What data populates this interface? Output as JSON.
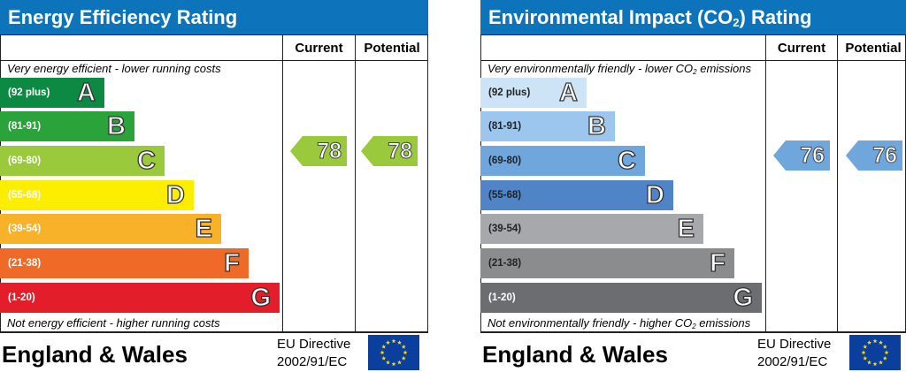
{
  "energy": {
    "title": "Energy Efficiency Rating",
    "col_current": "Current",
    "col_potential": "Potential",
    "top_note": "Very energy efficient - lower running costs",
    "bottom_note": "Not energy efficient - higher running costs",
    "bands": [
      {
        "range": "(92 plus)",
        "letter": "A",
        "color": "#0c8a44"
      },
      {
        "range": "(81-91)",
        "letter": "B",
        "color": "#2aa33b"
      },
      {
        "range": "(69-80)",
        "letter": "C",
        "color": "#9bc93c"
      },
      {
        "range": "(55-68)",
        "letter": "D",
        "color": "#fdee00"
      },
      {
        "range": "(39-54)",
        "letter": "E",
        "color": "#f8b22a"
      },
      {
        "range": "(21-38)",
        "letter": "F",
        "color": "#ef6a26"
      },
      {
        "range": "(1-20)",
        "letter": "G",
        "color": "#e31d2a"
      }
    ],
    "current": "78",
    "potential": "78",
    "current_color": "#9bc93c",
    "potential_color": "#9bc93c",
    "footer_region": "England & Wales",
    "directive_line1": "EU Directive",
    "directive_line2": "2002/91/EC"
  },
  "environment": {
    "title_pre": "Environmental Impact (CO",
    "title_sub": "2",
    "title_post": ") Rating",
    "col_current": "Current",
    "col_potential": "Potential",
    "top_note_pre": "Very environmentally friendly - lower CO",
    "top_note_sub": "2",
    "top_note_post": " emissions",
    "bottom_note_pre": "Not environmentally friendly - higher CO",
    "bottom_note_sub": "2",
    "bottom_note_post": " emissions",
    "bands": [
      {
        "range": "(92 plus)",
        "letter": "A",
        "color": "#cde3f6"
      },
      {
        "range": "(81-91)",
        "letter": "B",
        "color": "#9dc6ee"
      },
      {
        "range": "(69-80)",
        "letter": "C",
        "color": "#6fa7dd"
      },
      {
        "range": "(55-68)",
        "letter": "D",
        "color": "#4f85c6"
      },
      {
        "range": "(39-54)",
        "letter": "E",
        "color": "#a7a8ab"
      },
      {
        "range": "(21-38)",
        "letter": "F",
        "color": "#8b8c8e"
      },
      {
        "range": "(1-20)",
        "letter": "G",
        "color": "#6c6d70"
      }
    ],
    "current": "76",
    "potential": "76",
    "current_color": "#6fa7dd",
    "potential_color": "#6fa7dd",
    "footer_region": "England & Wales",
    "directive_line1": "EU Directive",
    "directive_line2": "2002/91/EC"
  }
}
